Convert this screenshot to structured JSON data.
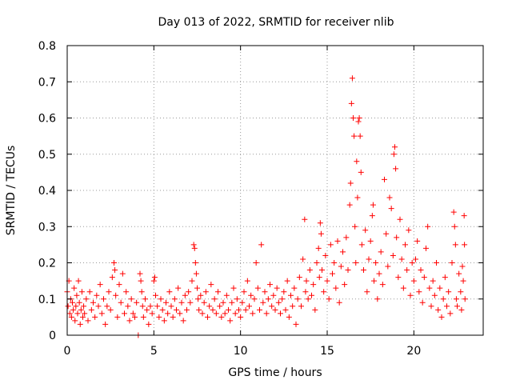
{
  "chart_data": {
    "type": "scatter",
    "title": "Day 013 of 2022, SRMTID for receiver nlib",
    "xlabel": "GPS time / hours",
    "ylabel": "SRMTID / TECUs",
    "xlim": [
      0,
      24
    ],
    "ylim": [
      0,
      0.8
    ],
    "x_ticks": [
      0,
      5,
      10,
      15,
      20
    ],
    "x_tick_labels": [
      "0",
      "5",
      "10",
      "15",
      "20"
    ],
    "y_ticks": [
      0,
      0.1,
      0.2,
      0.3,
      0.4,
      0.5,
      0.6,
      0.7,
      0.8
    ],
    "y_tick_labels": [
      "0",
      "0.1",
      "0.2",
      "0.3",
      "0.4",
      "0.5",
      "0.6",
      "0.7",
      "0.8"
    ],
    "grid": true,
    "marker": "plus",
    "color": "#ff0000",
    "series": [
      {
        "name": "SRMTID",
        "points": [
          [
            0.0,
            0.12
          ],
          [
            0.05,
            0.08
          ],
          [
            0.1,
            0.15
          ],
          [
            0.15,
            0.06
          ],
          [
            0.2,
            0.1
          ],
          [
            0.25,
            0.05
          ],
          [
            0.3,
            0.09
          ],
          [
            0.35,
            0.07
          ],
          [
            0.4,
            0.13
          ],
          [
            0.45,
            0.04
          ],
          [
            0.5,
            0.08
          ],
          [
            0.55,
            0.11
          ],
          [
            0.6,
            0.06
          ],
          [
            0.65,
            0.15
          ],
          [
            0.7,
            0.09
          ],
          [
            0.75,
            0.03
          ],
          [
            0.8,
            0.07
          ],
          [
            0.85,
            0.12
          ],
          [
            0.9,
            0.05
          ],
          [
            0.95,
            0.08
          ],
          [
            1.0,
            0.06
          ],
          [
            1.1,
            0.1
          ],
          [
            1.2,
            0.04
          ],
          [
            1.3,
            0.12
          ],
          [
            1.4,
            0.07
          ],
          [
            1.5,
            0.09
          ],
          [
            1.6,
            0.05
          ],
          [
            1.7,
            0.11
          ],
          [
            1.8,
            0.08
          ],
          [
            1.9,
            0.14
          ],
          [
            2.0,
            0.06
          ],
          [
            2.1,
            0.1
          ],
          [
            2.2,
            0.03
          ],
          [
            2.3,
            0.08
          ],
          [
            2.4,
            0.12
          ],
          [
            2.5,
            0.07
          ],
          [
            2.6,
            0.16
          ],
          [
            2.7,
            0.2
          ],
          [
            2.75,
            0.18
          ],
          [
            2.8,
            0.11
          ],
          [
            2.9,
            0.05
          ],
          [
            3.0,
            0.14
          ],
          [
            3.1,
            0.09
          ],
          [
            3.2,
            0.17
          ],
          [
            3.3,
            0.06
          ],
          [
            3.4,
            0.12
          ],
          [
            3.5,
            0.08
          ],
          [
            3.6,
            0.04
          ],
          [
            3.7,
            0.1
          ],
          [
            3.8,
            0.06
          ],
          [
            3.9,
            0.05
          ],
          [
            4.0,
            0.09
          ],
          [
            4.1,
            0.0
          ],
          [
            4.2,
            0.17
          ],
          [
            4.25,
            0.15
          ],
          [
            4.3,
            0.12
          ],
          [
            4.35,
            0.08
          ],
          [
            4.4,
            0.05
          ],
          [
            4.5,
            0.1
          ],
          [
            4.6,
            0.07
          ],
          [
            4.7,
            0.03
          ],
          [
            4.8,
            0.08
          ],
          [
            4.9,
            0.06
          ],
          [
            5.0,
            0.15
          ],
          [
            5.05,
            0.16
          ],
          [
            5.1,
            0.11
          ],
          [
            5.2,
            0.08
          ],
          [
            5.3,
            0.05
          ],
          [
            5.4,
            0.1
          ],
          [
            5.5,
            0.07
          ],
          [
            5.6,
            0.04
          ],
          [
            5.7,
            0.09
          ],
          [
            5.8,
            0.06
          ],
          [
            5.9,
            0.12
          ],
          [
            6.0,
            0.08
          ],
          [
            6.1,
            0.05
          ],
          [
            6.2,
            0.1
          ],
          [
            6.3,
            0.07
          ],
          [
            6.4,
            0.13
          ],
          [
            6.5,
            0.06
          ],
          [
            6.6,
            0.09
          ],
          [
            6.7,
            0.04
          ],
          [
            6.8,
            0.11
          ],
          [
            6.9,
            0.07
          ],
          [
            7.0,
            0.12
          ],
          [
            7.1,
            0.09
          ],
          [
            7.2,
            0.15
          ],
          [
            7.3,
            0.25
          ],
          [
            7.35,
            0.24
          ],
          [
            7.4,
            0.2
          ],
          [
            7.45,
            0.17
          ],
          [
            7.5,
            0.13
          ],
          [
            7.55,
            0.1
          ],
          [
            7.6,
            0.07
          ],
          [
            7.7,
            0.11
          ],
          [
            7.8,
            0.06
          ],
          [
            7.9,
            0.09
          ],
          [
            8.0,
            0.12
          ],
          [
            8.1,
            0.05
          ],
          [
            8.2,
            0.08
          ],
          [
            8.3,
            0.14
          ],
          [
            8.4,
            0.07
          ],
          [
            8.5,
            0.1
          ],
          [
            8.6,
            0.06
          ],
          [
            8.7,
            0.12
          ],
          [
            8.8,
            0.08
          ],
          [
            8.9,
            0.05
          ],
          [
            9.0,
            0.09
          ],
          [
            9.1,
            0.06
          ],
          [
            9.2,
            0.11
          ],
          [
            9.3,
            0.07
          ],
          [
            9.4,
            0.04
          ],
          [
            9.5,
            0.09
          ],
          [
            9.6,
            0.13
          ],
          [
            9.7,
            0.06
          ],
          [
            9.8,
            0.1
          ],
          [
            9.9,
            0.07
          ],
          [
            10.0,
            0.05
          ],
          [
            10.1,
            0.09
          ],
          [
            10.2,
            0.12
          ],
          [
            10.3,
            0.07
          ],
          [
            10.4,
            0.15
          ],
          [
            10.5,
            0.08
          ],
          [
            10.6,
            0.11
          ],
          [
            10.7,
            0.06
          ],
          [
            10.8,
            0.1
          ],
          [
            10.9,
            0.2
          ],
          [
            11.0,
            0.13
          ],
          [
            11.1,
            0.07
          ],
          [
            11.2,
            0.25
          ],
          [
            11.3,
            0.09
          ],
          [
            11.4,
            0.12
          ],
          [
            11.5,
            0.06
          ],
          [
            11.6,
            0.1
          ],
          [
            11.7,
            0.14
          ],
          [
            11.8,
            0.08
          ],
          [
            11.9,
            0.11
          ],
          [
            12.0,
            0.07
          ],
          [
            12.1,
            0.13
          ],
          [
            12.2,
            0.09
          ],
          [
            12.3,
            0.06
          ],
          [
            12.4,
            0.1
          ],
          [
            12.5,
            0.12
          ],
          [
            12.6,
            0.07
          ],
          [
            12.7,
            0.15
          ],
          [
            12.8,
            0.05
          ],
          [
            12.9,
            0.11
          ],
          [
            13.0,
            0.08
          ],
          [
            13.1,
            0.13
          ],
          [
            13.2,
            0.03
          ],
          [
            13.3,
            0.1
          ],
          [
            13.4,
            0.16
          ],
          [
            13.5,
            0.08
          ],
          [
            13.6,
            0.21
          ],
          [
            13.7,
            0.32
          ],
          [
            13.75,
            0.12
          ],
          [
            13.8,
            0.15
          ],
          [
            13.9,
            0.1
          ],
          [
            14.0,
            0.18
          ],
          [
            14.1,
            0.11
          ],
          [
            14.2,
            0.14
          ],
          [
            14.3,
            0.07
          ],
          [
            14.4,
            0.2
          ],
          [
            14.5,
            0.24
          ],
          [
            14.55,
            0.16
          ],
          [
            14.6,
            0.31
          ],
          [
            14.65,
            0.28
          ],
          [
            14.7,
            0.18
          ],
          [
            14.8,
            0.12
          ],
          [
            14.9,
            0.22
          ],
          [
            15.0,
            0.15
          ],
          [
            15.1,
            0.1
          ],
          [
            15.2,
            0.25
          ],
          [
            15.3,
            0.17
          ],
          [
            15.4,
            0.2
          ],
          [
            15.5,
            0.13
          ],
          [
            15.6,
            0.26
          ],
          [
            15.7,
            0.09
          ],
          [
            15.8,
            0.19
          ],
          [
            15.9,
            0.23
          ],
          [
            16.0,
            0.14
          ],
          [
            16.1,
            0.27
          ],
          [
            16.2,
            0.18
          ],
          [
            16.3,
            0.36
          ],
          [
            16.35,
            0.42
          ],
          [
            16.4,
            0.64
          ],
          [
            16.45,
            0.71
          ],
          [
            16.5,
            0.6
          ],
          [
            16.55,
            0.55
          ],
          [
            16.6,
            0.3
          ],
          [
            16.65,
            0.2
          ],
          [
            16.7,
            0.48
          ],
          [
            16.75,
            0.38
          ],
          [
            16.8,
            0.59
          ],
          [
            16.85,
            0.6
          ],
          [
            16.9,
            0.55
          ],
          [
            16.95,
            0.45
          ],
          [
            17.0,
            0.25
          ],
          [
            17.1,
            0.18
          ],
          [
            17.2,
            0.29
          ],
          [
            17.3,
            0.12
          ],
          [
            17.4,
            0.21
          ],
          [
            17.5,
            0.26
          ],
          [
            17.6,
            0.33
          ],
          [
            17.65,
            0.36
          ],
          [
            17.7,
            0.15
          ],
          [
            17.8,
            0.2
          ],
          [
            17.9,
            0.1
          ],
          [
            18.0,
            0.17
          ],
          [
            18.1,
            0.23
          ],
          [
            18.2,
            0.14
          ],
          [
            18.3,
            0.43
          ],
          [
            18.4,
            0.28
          ],
          [
            18.5,
            0.19
          ],
          [
            18.6,
            0.38
          ],
          [
            18.7,
            0.35
          ],
          [
            18.8,
            0.22
          ],
          [
            18.85,
            0.5
          ],
          [
            18.9,
            0.52
          ],
          [
            18.95,
            0.46
          ],
          [
            19.0,
            0.27
          ],
          [
            19.1,
            0.16
          ],
          [
            19.2,
            0.32
          ],
          [
            19.3,
            0.21
          ],
          [
            19.4,
            0.13
          ],
          [
            19.5,
            0.25
          ],
          [
            19.6,
            0.18
          ],
          [
            19.7,
            0.29
          ],
          [
            19.8,
            0.11
          ],
          [
            19.9,
            0.2
          ],
          [
            20.0,
            0.15
          ],
          [
            20.1,
            0.21
          ],
          [
            20.2,
            0.26
          ],
          [
            20.3,
            0.12
          ],
          [
            20.4,
            0.18
          ],
          [
            20.5,
            0.09
          ],
          [
            20.6,
            0.16
          ],
          [
            20.7,
            0.24
          ],
          [
            20.8,
            0.3
          ],
          [
            20.9,
            0.13
          ],
          [
            21.0,
            0.08
          ],
          [
            21.1,
            0.15
          ],
          [
            21.2,
            0.11
          ],
          [
            21.3,
            0.2
          ],
          [
            21.4,
            0.07
          ],
          [
            21.5,
            0.13
          ],
          [
            21.6,
            0.05
          ],
          [
            21.7,
            0.1
          ],
          [
            21.8,
            0.16
          ],
          [
            21.9,
            0.08
          ],
          [
            22.0,
            0.12
          ],
          [
            22.1,
            0.06
          ],
          [
            22.2,
            0.2
          ],
          [
            22.3,
            0.34
          ],
          [
            22.35,
            0.3
          ],
          [
            22.4,
            0.25
          ],
          [
            22.45,
            0.1
          ],
          [
            22.5,
            0.08
          ],
          [
            22.6,
            0.17
          ],
          [
            22.7,
            0.12
          ],
          [
            22.75,
            0.07
          ],
          [
            22.8,
            0.19
          ],
          [
            22.85,
            0.15
          ],
          [
            22.9,
            0.33
          ],
          [
            22.92,
            0.25
          ],
          [
            22.95,
            0.1
          ]
        ]
      }
    ]
  }
}
